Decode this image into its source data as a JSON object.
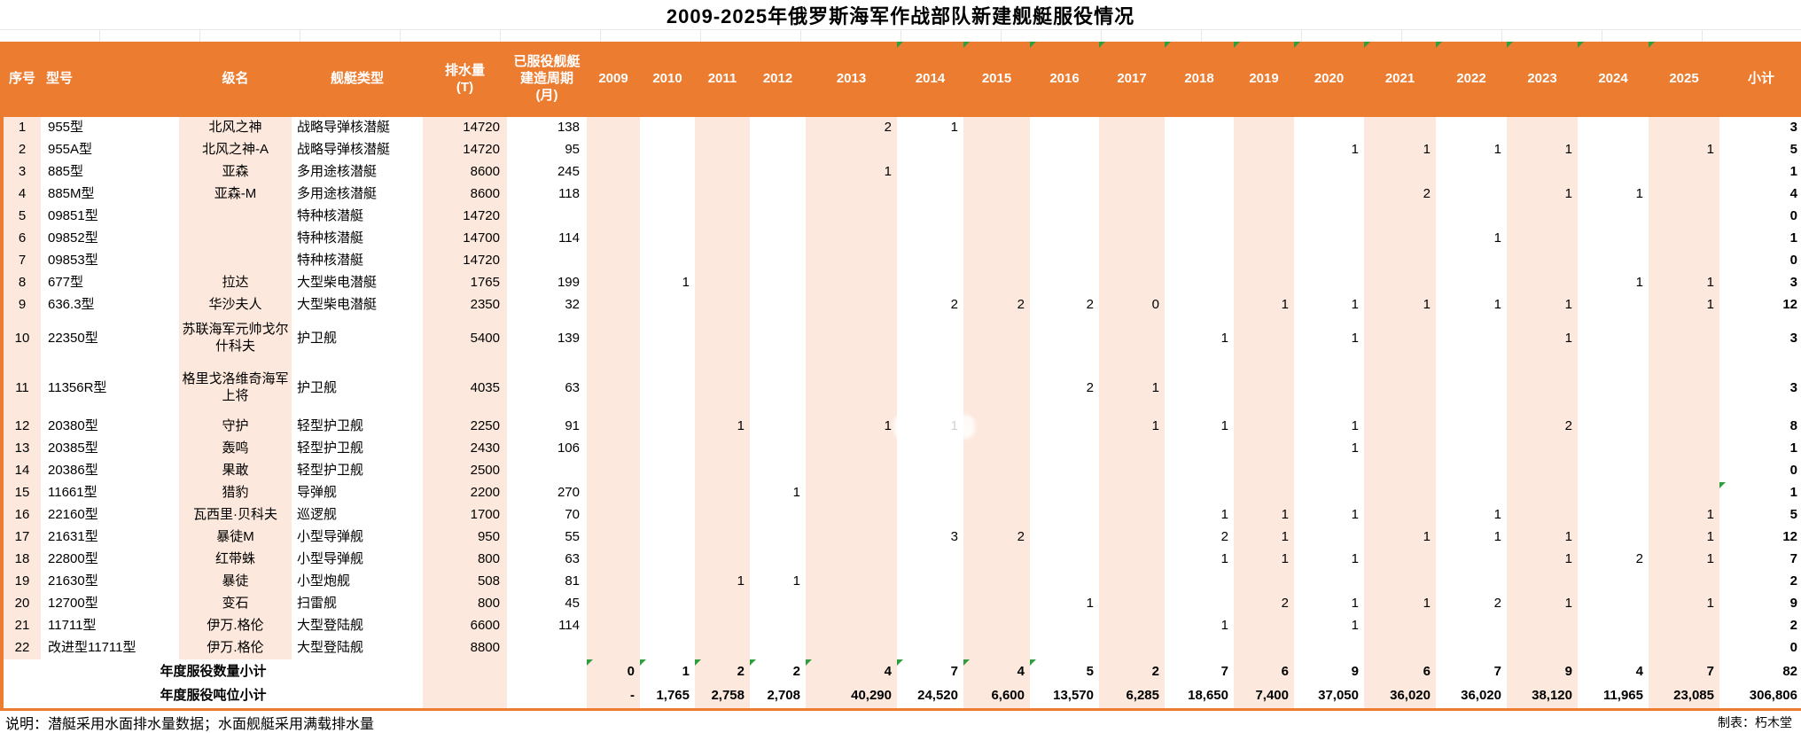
{
  "title": "2009-2025年俄罗斯海军作战部队新建舰艇服役情况",
  "columns": {
    "index": "序号",
    "model": "型号",
    "class_name": "级名",
    "ship_type": "舰艇类型",
    "displacement": "排水量\n(T)",
    "build_period": "已服役舰艇\n建造周期\n(月)",
    "years": [
      "2009",
      "2010",
      "2011",
      "2012",
      "2013",
      "2014",
      "2015",
      "2016",
      "2017",
      "2018",
      "2019",
      "2020",
      "2021",
      "2022",
      "2023",
      "2024",
      "2025"
    ],
    "subtotal": "小计"
  },
  "rows": [
    {
      "index": "1",
      "model": "955型",
      "class_name": "北风之神",
      "ship_type": "战略导弹核潜艇",
      "displacement": "14720",
      "build_period": "138",
      "years": [
        "",
        "",
        "",
        "",
        "2",
        "1",
        "",
        "",
        "",
        "",
        "",
        "",
        "",
        "",
        "",
        "",
        ""
      ],
      "subtotal": "3"
    },
    {
      "index": "2",
      "model": "955A型",
      "class_name": "北风之神-A",
      "ship_type": "战略导弹核潜艇",
      "displacement": "14720",
      "build_period": "95",
      "years": [
        "",
        "",
        "",
        "",
        "",
        "",
        "",
        "",
        "",
        "",
        "",
        "1",
        "1",
        "1",
        "1",
        "",
        "1"
      ],
      "subtotal": "5"
    },
    {
      "index": "3",
      "model": "885型",
      "class_name": "亚森",
      "ship_type": "多用途核潜艇",
      "displacement": "8600",
      "build_period": "245",
      "years": [
        "",
        "",
        "",
        "",
        "1",
        "",
        "",
        "",
        "",
        "",
        "",
        "",
        "",
        "",
        "",
        "",
        ""
      ],
      "subtotal": "1"
    },
    {
      "index": "4",
      "model": "885M型",
      "class_name": "亚森-M",
      "ship_type": "多用途核潜艇",
      "displacement": "8600",
      "build_period": "118",
      "years": [
        "",
        "",
        "",
        "",
        "",
        "",
        "",
        "",
        "",
        "",
        "",
        "",
        "2",
        "",
        "1",
        "1",
        ""
      ],
      "subtotal": "4"
    },
    {
      "index": "5",
      "model": "09851型",
      "class_name": "",
      "ship_type": "特种核潜艇",
      "displacement": "14720",
      "build_period": "",
      "years": [
        "",
        "",
        "",
        "",
        "",
        "",
        "",
        "",
        "",
        "",
        "",
        "",
        "",
        "",
        "",
        "",
        ""
      ],
      "subtotal": "0"
    },
    {
      "index": "6",
      "model": "09852型",
      "class_name": "",
      "ship_type": "特种核潜艇",
      "displacement": "14700",
      "build_period": "114",
      "years": [
        "",
        "",
        "",
        "",
        "",
        "",
        "",
        "",
        "",
        "",
        "",
        "",
        "",
        "1",
        "",
        "",
        ""
      ],
      "subtotal": "1"
    },
    {
      "index": "7",
      "model": "09853型",
      "class_name": "",
      "ship_type": "特种核潜艇",
      "displacement": "14720",
      "build_period": "",
      "years": [
        "",
        "",
        "",
        "",
        "",
        "",
        "",
        "",
        "",
        "",
        "",
        "",
        "",
        "",
        "",
        "",
        ""
      ],
      "subtotal": "0"
    },
    {
      "index": "8",
      "model": "677型",
      "class_name": "拉达",
      "ship_type": "大型柴电潜艇",
      "displacement": "1765",
      "build_period": "199",
      "years": [
        "",
        "1",
        "",
        "",
        "",
        "",
        "",
        "",
        "",
        "",
        "",
        "",
        "",
        "",
        "",
        "1",
        "1"
      ],
      "subtotal": "3"
    },
    {
      "index": "9",
      "model": "636.3型",
      "class_name": "华沙夫人",
      "ship_type": "大型柴电潜艇",
      "displacement": "2350",
      "build_period": "32",
      "years": [
        "",
        "",
        "",
        "",
        "",
        "2",
        "2",
        "2",
        "0",
        "",
        "1",
        "1",
        "1",
        "1",
        "1",
        "",
        "1"
      ],
      "subtotal": "12"
    },
    {
      "index": "10",
      "model": "22350型",
      "class_name": "苏联海军元帅戈尔什科夫",
      "ship_type": "护卫舰",
      "displacement": "5400",
      "build_period": "139",
      "years": [
        "",
        "",
        "",
        "",
        "",
        "",
        "",
        "",
        "",
        "1",
        "",
        "1",
        "",
        "",
        "1",
        "",
        ""
      ],
      "subtotal": "3"
    },
    {
      "index": "11",
      "model": "11356R型",
      "class_name": "格里戈洛维奇海军上将",
      "ship_type": "护卫舰",
      "displacement": "4035",
      "build_period": "63",
      "years": [
        "",
        "",
        "",
        "",
        "",
        "",
        "",
        "2",
        "1",
        "",
        "",
        "",
        "",
        "",
        "",
        "",
        ""
      ],
      "subtotal": "3"
    },
    {
      "index": "12",
      "model": "20380型",
      "class_name": "守护",
      "ship_type": "轻型护卫舰",
      "displacement": "2250",
      "build_period": "91",
      "years": [
        "",
        "",
        "1",
        "",
        "1",
        "1",
        "",
        "",
        "1",
        "1",
        "",
        "1",
        "",
        "",
        "2",
        "",
        ""
      ],
      "subtotal": "8"
    },
    {
      "index": "13",
      "model": "20385型",
      "class_name": "轰鸣",
      "ship_type": "轻型护卫舰",
      "displacement": "2430",
      "build_period": "106",
      "years": [
        "",
        "",
        "",
        "",
        "",
        "",
        "",
        "",
        "",
        "",
        "",
        "1",
        "",
        "",
        "",
        "",
        ""
      ],
      "subtotal": "1"
    },
    {
      "index": "14",
      "model": "20386型",
      "class_name": "果敢",
      "ship_type": "轻型护卫舰",
      "displacement": "2500",
      "build_period": "",
      "years": [
        "",
        "",
        "",
        "",
        "",
        "",
        "",
        "",
        "",
        "",
        "",
        "",
        "",
        "",
        "",
        "",
        ""
      ],
      "subtotal": "0"
    },
    {
      "index": "15",
      "model": "11661型",
      "class_name": "猎豹",
      "ship_type": "导弹舰",
      "displacement": "2200",
      "build_period": "270",
      "years": [
        "",
        "",
        "",
        "1",
        "",
        "",
        "",
        "",
        "",
        "",
        "",
        "",
        "",
        "",
        "",
        "",
        ""
      ],
      "subtotal": "1",
      "mark_subtotal": true
    },
    {
      "index": "16",
      "model": "22160型",
      "class_name": "瓦西里·贝科夫",
      "ship_type": "巡逻舰",
      "displacement": "1700",
      "build_period": "70",
      "years": [
        "",
        "",
        "",
        "",
        "",
        "",
        "",
        "",
        "",
        "1",
        "1",
        "1",
        "",
        "1",
        "",
        "",
        "1"
      ],
      "subtotal": "5"
    },
    {
      "index": "17",
      "model": "21631型",
      "class_name": "暴徒M",
      "ship_type": "小型导弹舰",
      "displacement": "950",
      "build_period": "55",
      "years": [
        "",
        "",
        "",
        "",
        "",
        "3",
        "2",
        "",
        "",
        "2",
        "1",
        "",
        "1",
        "1",
        "1",
        "",
        "1"
      ],
      "subtotal": "12"
    },
    {
      "index": "18",
      "model": "22800型",
      "class_name": "红带蛛",
      "ship_type": "小型导弹舰",
      "displacement": "800",
      "build_period": "63",
      "years": [
        "",
        "",
        "",
        "",
        "",
        "",
        "",
        "",
        "",
        "1",
        "1",
        "1",
        "",
        "",
        "1",
        "2",
        "1"
      ],
      "subtotal": "7"
    },
    {
      "index": "19",
      "model": "21630型",
      "class_name": "暴徒",
      "ship_type": "小型炮舰",
      "displacement": "508",
      "build_period": "81",
      "years": [
        "",
        "",
        "1",
        "1",
        "",
        "",
        "",
        "",
        "",
        "",
        "",
        "",
        "",
        "",
        "",
        "",
        ""
      ],
      "subtotal": "2"
    },
    {
      "index": "20",
      "model": "12700型",
      "class_name": "变石",
      "ship_type": "扫雷舰",
      "displacement": "800",
      "build_period": "45",
      "years": [
        "",
        "",
        "",
        "",
        "",
        "",
        "",
        "1",
        "",
        "",
        "2",
        "1",
        "1",
        "2",
        "1",
        "",
        "1"
      ],
      "subtotal": "9"
    },
    {
      "index": "21",
      "model": "11711型",
      "class_name": "伊万.格伦",
      "ship_type": "大型登陆舰",
      "displacement": "6600",
      "build_period": "114",
      "years": [
        "",
        "",
        "",
        "",
        "",
        "",
        "",
        "",
        "",
        "1",
        "",
        "1",
        "",
        "",
        "",
        "",
        ""
      ],
      "subtotal": "2"
    },
    {
      "index": "22",
      "model": "改进型11711型",
      "class_name": "伊万.格伦",
      "ship_type": "大型登陆舰",
      "displacement": "8800",
      "build_period": "",
      "years": [
        "",
        "",
        "",
        "",
        "",
        "",
        "",
        "",
        "",
        "",
        "",
        "",
        "",
        "",
        "",
        "",
        ""
      ],
      "subtotal": "0"
    }
  ],
  "summary_count": {
    "label": "年度服役数量小计",
    "values": [
      "0",
      "1",
      "2",
      "2",
      "4",
      "7",
      "4",
      "5",
      "2",
      "7",
      "6",
      "9",
      "6",
      "7",
      "9",
      "4",
      "7"
    ],
    "total": "82"
  },
  "summary_tonnage": {
    "label": "年度服役吨位小计",
    "values": [
      "-",
      "1,765",
      "2,758",
      "2,708",
      "40,290",
      "24,520",
      "6,600",
      "13,570",
      "6,285",
      "18,650",
      "7,400",
      "37,050",
      "36,020",
      "36,020",
      "38,120",
      "11,965",
      "23,085"
    ],
    "total": "306,806"
  },
  "footer": {
    "note": "说明：潜艇采用水面排水量数据；水面舰艇采用满载排水量",
    "credit": "制表：朽木堂"
  },
  "green_marks": {
    "header_years": [
      "2014",
      "2015",
      "2016",
      "2017",
      "2018",
      "2019",
      "2020",
      "2021",
      "2022",
      "2023",
      "2024",
      "2025"
    ],
    "summary_count_years": [
      "2009",
      "2010",
      "2011",
      "2012",
      "2013",
      "2014",
      "2015",
      "2016"
    ]
  },
  "colors": {
    "header_bg": "#EC7C30",
    "band_peach": "#FCE8DC",
    "indicator_green": "#2E9E3F"
  }
}
